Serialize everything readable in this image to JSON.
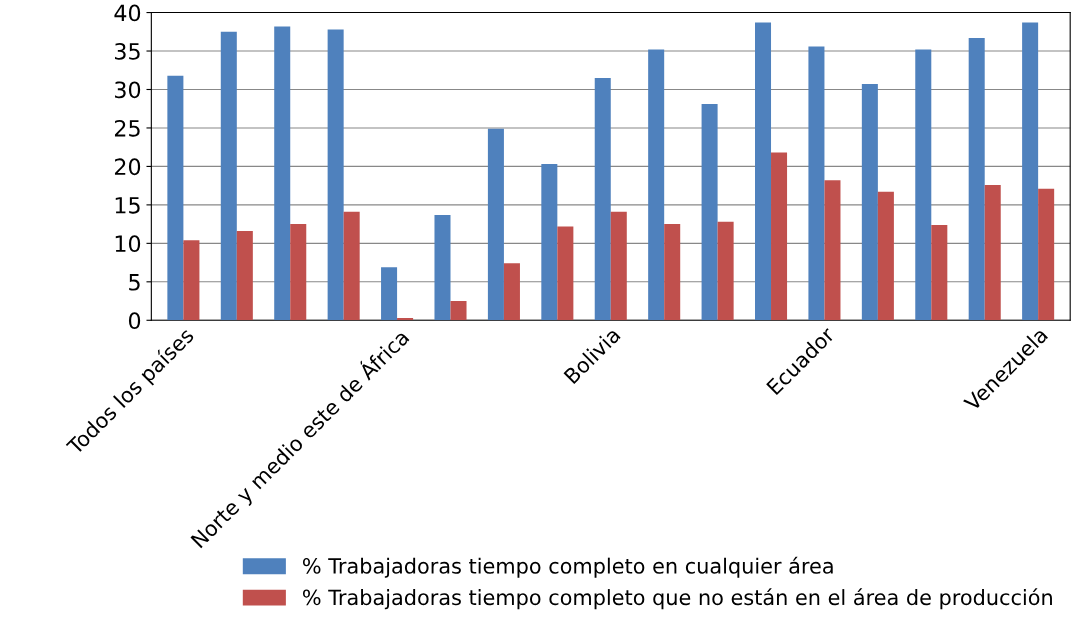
{
  "chart_data": {
    "type": "bar",
    "categories": [
      "Todos los países",
      null,
      null,
      null,
      "Norte y medio este de África",
      null,
      null,
      null,
      "Bolivia",
      null,
      null,
      null,
      "Ecuador",
      null,
      null,
      null,
      "Venezuela"
    ],
    "series": [
      {
        "name": "% Trabajadoras tiempo completo en cualquier área",
        "color": "#4f81bd",
        "values": [
          31.8,
          37.5,
          38.2,
          37.8,
          6.9,
          13.7,
          24.9,
          20.3,
          31.5,
          35.2,
          28.1,
          38.7,
          35.6,
          30.7,
          35.2,
          36.7,
          38.7
        ]
      },
      {
        "name": "% Trabajadoras tiempo completo que no están en el área de producción",
        "color": "#c0504d",
        "values": [
          10.4,
          11.6,
          12.5,
          14.1,
          0.3,
          2.5,
          7.4,
          12.2,
          14.1,
          12.5,
          12.8,
          21.8,
          18.2,
          16.7,
          12.4,
          17.6,
          17.1
        ]
      }
    ],
    "ylim": [
      0,
      40
    ],
    "yticks": [
      0,
      5,
      10,
      15,
      20,
      25,
      30,
      35,
      40
    ],
    "grid": "y",
    "legend": "bottom"
  }
}
